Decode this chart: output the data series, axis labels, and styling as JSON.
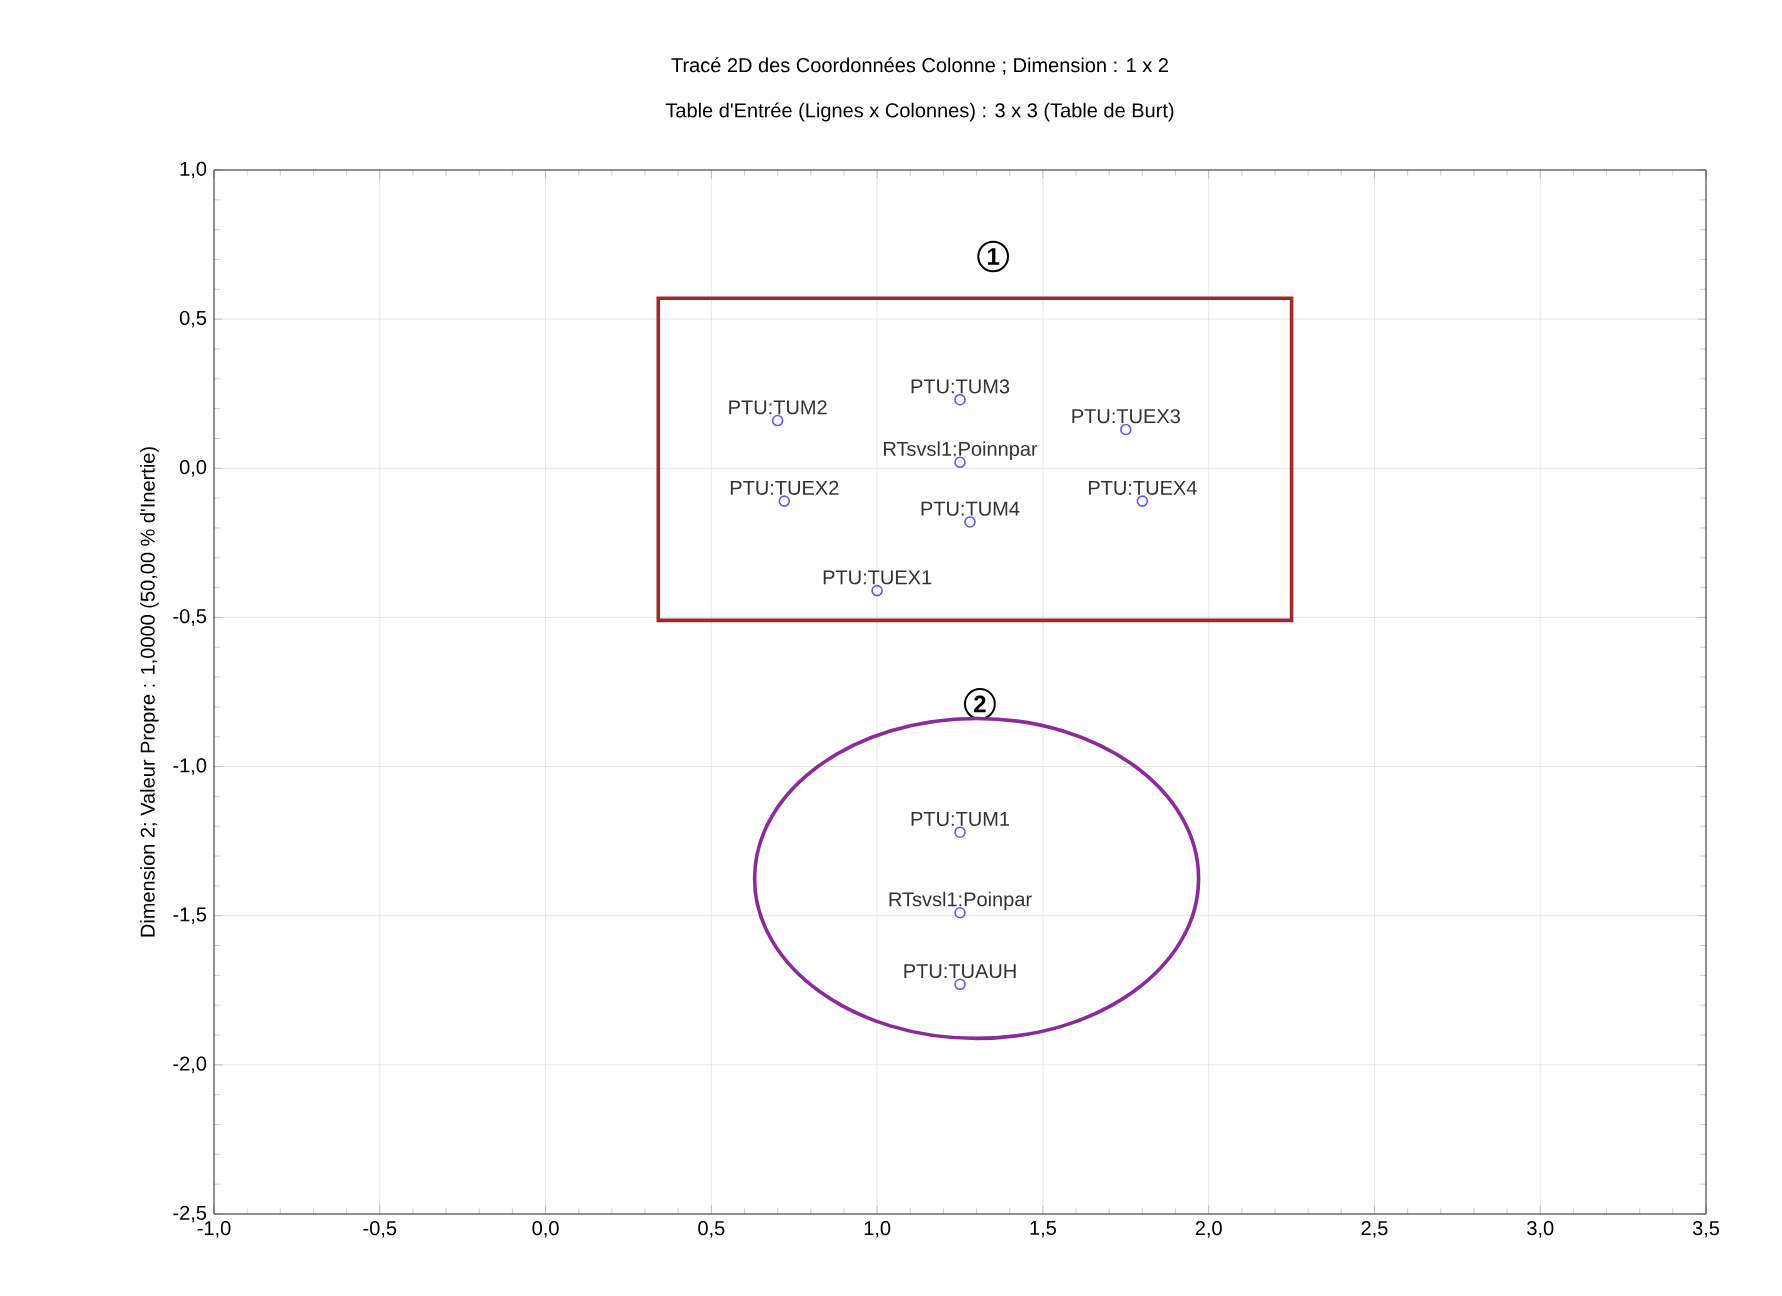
{
  "chart_data": {
    "type": "scatter",
    "title": "Tracé 2D des Coordonnées Colonne ; Dimension :  1 x  2",
    "subtitle": "Table d'Entrée (Lignes x Colonnes) : 3 x 3 (Table de Burt)",
    "ylabel": "Dimension 2; Valeur Propre : 1,0000 (50,00  % d'Inertie)",
    "x": [
      0.7,
      1.25,
      1.75,
      1.25,
      0.72,
      1.28,
      1.8,
      1.0,
      1.25,
      1.25,
      1.25
    ],
    "series": [
      {
        "color": "#5a5aff",
        "values": [
          0.16,
          0.23,
          0.13,
          0.02,
          -0.11,
          -0.18,
          -0.11,
          -0.41,
          -1.22,
          -1.49,
          -1.73
        ]
      }
    ],
    "marker": "circle",
    "grid": true,
    "xlim": [
      -1.0,
      3.5
    ],
    "ylim": [
      -2.5,
      1.0
    ],
    "xticks": [
      {
        "value": -1.0,
        "label": "-1,0"
      },
      {
        "value": -0.5,
        "label": "-0,5"
      },
      {
        "value": 0.0,
        "label": "0,0"
      },
      {
        "value": 0.5,
        "label": "0,5"
      },
      {
        "value": 1.0,
        "label": "1,0"
      },
      {
        "value": 1.5,
        "label": "1,5"
      },
      {
        "value": 2.0,
        "label": "2,0"
      },
      {
        "value": 2.5,
        "label": "2,5"
      },
      {
        "value": 3.0,
        "label": "3,0"
      },
      {
        "value": 3.5,
        "label": "3,5"
      }
    ],
    "yticks": [
      {
        "value": -2.5,
        "label": "-2,5"
      },
      {
        "value": -2.0,
        "label": "-2,0"
      },
      {
        "value": -1.5,
        "label": "-1,5"
      },
      {
        "value": -1.0,
        "label": "-1,0"
      },
      {
        "value": -0.5,
        "label": "-0,5"
      },
      {
        "value": 0.0,
        "label": "0,0"
      },
      {
        "value": 0.5,
        "label": "0,5"
      },
      {
        "value": 1.0,
        "label": "1,0"
      }
    ],
    "annotations": [
      {
        "text": "PTU:TUM2",
        "x": 0.7,
        "y": 0.16
      },
      {
        "text": "PTU:TUM3",
        "x": 1.25,
        "y": 0.23
      },
      {
        "text": "PTU:TUEX3",
        "x": 1.75,
        "y": 0.13
      },
      {
        "text": "RTsvsl1:Poinnpar",
        "x": 1.25,
        "y": 0.02
      },
      {
        "text": "PTU:TUEX2",
        "x": 0.72,
        "y": -0.11
      },
      {
        "text": "PTU:TUM4",
        "x": 1.28,
        "y": -0.18
      },
      {
        "text": "PTU:TUEX4",
        "x": 1.8,
        "y": -0.11
      },
      {
        "text": "PTU:TUEX1",
        "x": 1.0,
        "y": -0.41
      },
      {
        "text": "PTU:TUM1",
        "x": 1.25,
        "y": -1.22
      },
      {
        "text": "RTsvsl1:Poinpar",
        "x": 1.25,
        "y": -1.49
      },
      {
        "text": "PTU:TUAUH",
        "x": 1.25,
        "y": -1.73
      },
      "1",
      "2"
    ]
  }
}
